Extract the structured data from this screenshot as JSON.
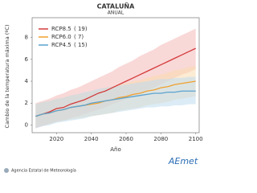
{
  "chart_data": {
    "type": "line",
    "title": "CATALUÑA",
    "subtitle": "ANUAL",
    "y_label": "Cambio de la temperatura máxima (ºC)",
    "x_label": "Año",
    "source": "Agencia Estatal de Meteorología",
    "logo": "AEmet",
    "x": [
      2008,
      2012,
      2016,
      2020,
      2024,
      2028,
      2032,
      2036,
      2040,
      2044,
      2048,
      2052,
      2056,
      2060,
      2064,
      2068,
      2072,
      2076,
      2080,
      2084,
      2088,
      2092,
      2096,
      2100
    ],
    "xlim": [
      2006,
      2102
    ],
    "xticks": [
      2020,
      2040,
      2060,
      2080,
      2100
    ],
    "ylim": [
      -0.7,
      9.8
    ],
    "yticks": [
      0,
      2,
      4,
      6,
      8
    ],
    "series": [
      {
        "name": "RCP8.5",
        "count": "( 19)",
        "color": "#d43a3a",
        "band_color": "#f4b8b8",
        "values": [
          0.8,
          1.0,
          1.2,
          1.5,
          1.6,
          1.9,
          2.1,
          2.3,
          2.6,
          2.9,
          3.1,
          3.4,
          3.7,
          4.0,
          4.3,
          4.6,
          4.9,
          5.2,
          5.5,
          5.8,
          6.1,
          6.4,
          6.7,
          7.0
        ],
        "lower": [
          -0.3,
          -0.1,
          0.1,
          0.3,
          0.4,
          0.6,
          0.8,
          1.0,
          1.2,
          1.4,
          1.6,
          1.9,
          2.1,
          2.4,
          2.6,
          2.9,
          3.2,
          3.4,
          3.7,
          4.0,
          4.3,
          4.6,
          4.8,
          5.1
        ],
        "upper": [
          2.0,
          2.2,
          2.4,
          2.7,
          2.9,
          3.2,
          3.4,
          3.7,
          4.0,
          4.3,
          4.6,
          4.9,
          5.3,
          5.6,
          5.9,
          6.3,
          6.6,
          6.9,
          7.3,
          7.6,
          7.9,
          8.2,
          8.5,
          8.8
        ]
      },
      {
        "name": "RCP6.0",
        "count": "(  7)",
        "color": "#f0a030",
        "band_color": "#f9dcae",
        "values": [
          0.8,
          1.0,
          1.1,
          1.3,
          1.4,
          1.6,
          1.7,
          1.8,
          1.9,
          2.0,
          2.2,
          2.3,
          2.5,
          2.6,
          2.8,
          2.9,
          3.1,
          3.2,
          3.4,
          3.5,
          3.7,
          3.8,
          3.9,
          4.0
        ],
        "lower": [
          -0.2,
          0.0,
          0.1,
          0.3,
          0.4,
          0.5,
          0.6,
          0.7,
          0.8,
          0.9,
          1.0,
          1.1,
          1.3,
          1.4,
          1.5,
          1.6,
          1.8,
          1.9,
          2.0,
          2.1,
          2.3,
          2.4,
          2.5,
          2.6
        ],
        "upper": [
          1.9,
          2.1,
          2.2,
          2.4,
          2.5,
          2.7,
          2.8,
          2.9,
          3.1,
          3.2,
          3.4,
          3.5,
          3.7,
          3.8,
          4.0,
          4.1,
          4.3,
          4.5,
          4.6,
          4.8,
          5.0,
          5.1,
          5.3,
          5.4
        ]
      },
      {
        "name": "RCP4.5",
        "count": "( 15)",
        "color": "#5ba3d0",
        "band_color": "#bfdcee",
        "values": [
          0.8,
          1.0,
          1.1,
          1.3,
          1.4,
          1.6,
          1.7,
          1.8,
          2.0,
          2.1,
          2.2,
          2.3,
          2.4,
          2.5,
          2.6,
          2.7,
          2.8,
          2.9,
          2.9,
          3.0,
          3.0,
          3.1,
          3.1,
          3.1
        ],
        "lower": [
          -0.3,
          -0.1,
          0.0,
          0.2,
          0.3,
          0.4,
          0.5,
          0.6,
          0.8,
          0.9,
          1.0,
          1.1,
          1.2,
          1.3,
          1.4,
          1.5,
          1.6,
          1.6,
          1.7,
          1.7,
          1.8,
          1.8,
          1.9,
          1.9
        ],
        "upper": [
          1.9,
          2.1,
          2.2,
          2.4,
          2.5,
          2.7,
          2.8,
          3.0,
          3.1,
          3.3,
          3.4,
          3.5,
          3.6,
          3.7,
          3.8,
          3.9,
          4.0,
          4.1,
          4.2,
          4.2,
          4.3,
          4.3,
          4.4,
          4.4
        ]
      }
    ]
  }
}
